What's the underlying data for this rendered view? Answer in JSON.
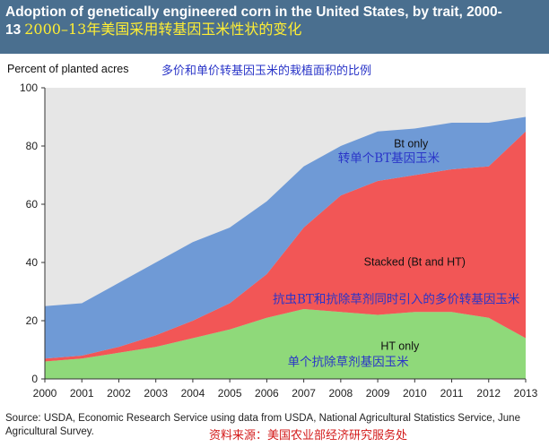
{
  "title": "Adoption of genetically engineered corn in the United States, by trait, 2000-13",
  "title_cn": "2000–13年美国采用转基因玉米性状的变化",
  "ylabel": "Percent of planted acres",
  "ylabel_cn": "多价和单价转基因玉米的栽植面积的比例",
  "source": "Source: USDA, Economic Research Service using data from USDA, National Agricultural Statistics Service, June Agricultural Survey.",
  "source_cn": "资料来源：美国农业部经济研究服务处",
  "colors": {
    "header": "#4a6f8f",
    "ht_only": "#8fd97a",
    "stacked": "#f25656",
    "bt_only": "#6f9ad6",
    "remainder": "#e6e6e6"
  },
  "chart_data": {
    "type": "area",
    "stacked": true,
    "x": [
      2000,
      2001,
      2002,
      2003,
      2004,
      2005,
      2006,
      2007,
      2008,
      2009,
      2010,
      2011,
      2012,
      2013
    ],
    "ylim": [
      0,
      100
    ],
    "yticks": [
      0,
      20,
      40,
      60,
      80,
      100
    ],
    "grid": false,
    "series": [
      {
        "name": "HT only",
        "name_cn": "单个抗除草剂基因玉米",
        "color": "#8fd97a",
        "values": [
          6,
          7,
          9,
          11,
          14,
          17,
          21,
          24,
          23,
          22,
          23,
          23,
          21,
          14
        ]
      },
      {
        "name": "Stacked (Bt and HT)",
        "name_cn": "抗虫BT和抗除草剂同时引入的多价转基因玉米",
        "color": "#f25656",
        "values": [
          1,
          1,
          2,
          4,
          6,
          9,
          15,
          28,
          40,
          46,
          47,
          49,
          52,
          71
        ]
      },
      {
        "name": "Bt only",
        "name_cn": "转单个BT基因玉米",
        "color": "#6f9ad6",
        "values": [
          18,
          18,
          22,
          25,
          27,
          26,
          25,
          21,
          17,
          17,
          16,
          16,
          15,
          5
        ]
      }
    ],
    "stack_top": [
      25,
      26,
      33,
      40,
      47,
      52,
      61,
      73,
      80,
      85,
      86,
      88,
      88,
      90
    ]
  }
}
